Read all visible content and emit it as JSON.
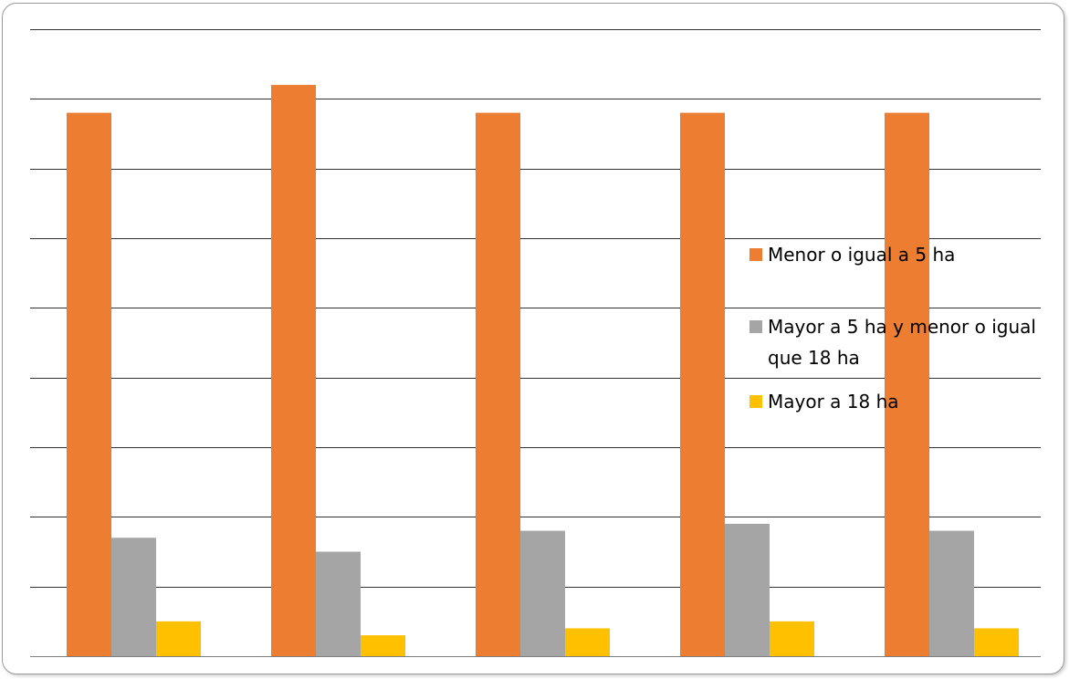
{
  "chart_data": {
    "type": "bar",
    "categories": [
      "",
      "",
      "",
      "",
      ""
    ],
    "series": [
      {
        "name": "Menor o igual a 5 ha",
        "color": "#ED7D31",
        "values": [
          78,
          82,
          78,
          78,
          78
        ]
      },
      {
        "name": "Mayor a 5 ha y menor o igual que 18 ha",
        "color": "#A5A5A5",
        "values": [
          17,
          15,
          18,
          19,
          18
        ]
      },
      {
        "name": "Mayor a 18 ha",
        "color": "#FFC000",
        "values": [
          5,
          3,
          4,
          5,
          4
        ]
      }
    ],
    "ylim": [
      0,
      90
    ],
    "grid": true,
    "gridlines": 9,
    "legend_position": "right",
    "legend": {
      "entries": [
        {
          "lines": [
            "Menor o igual a 5 ha"
          ],
          "color": "#ED7D31"
        },
        {
          "lines": [
            "Mayor a 5 ha y menor o igual",
            "que 18 ha"
          ],
          "color": "#A5A5A5"
        },
        {
          "lines": [
            "Mayor a 18 ha"
          ],
          "color": "#FFC000"
        }
      ]
    },
    "title": "",
    "xlabel": "",
    "ylabel": ""
  }
}
